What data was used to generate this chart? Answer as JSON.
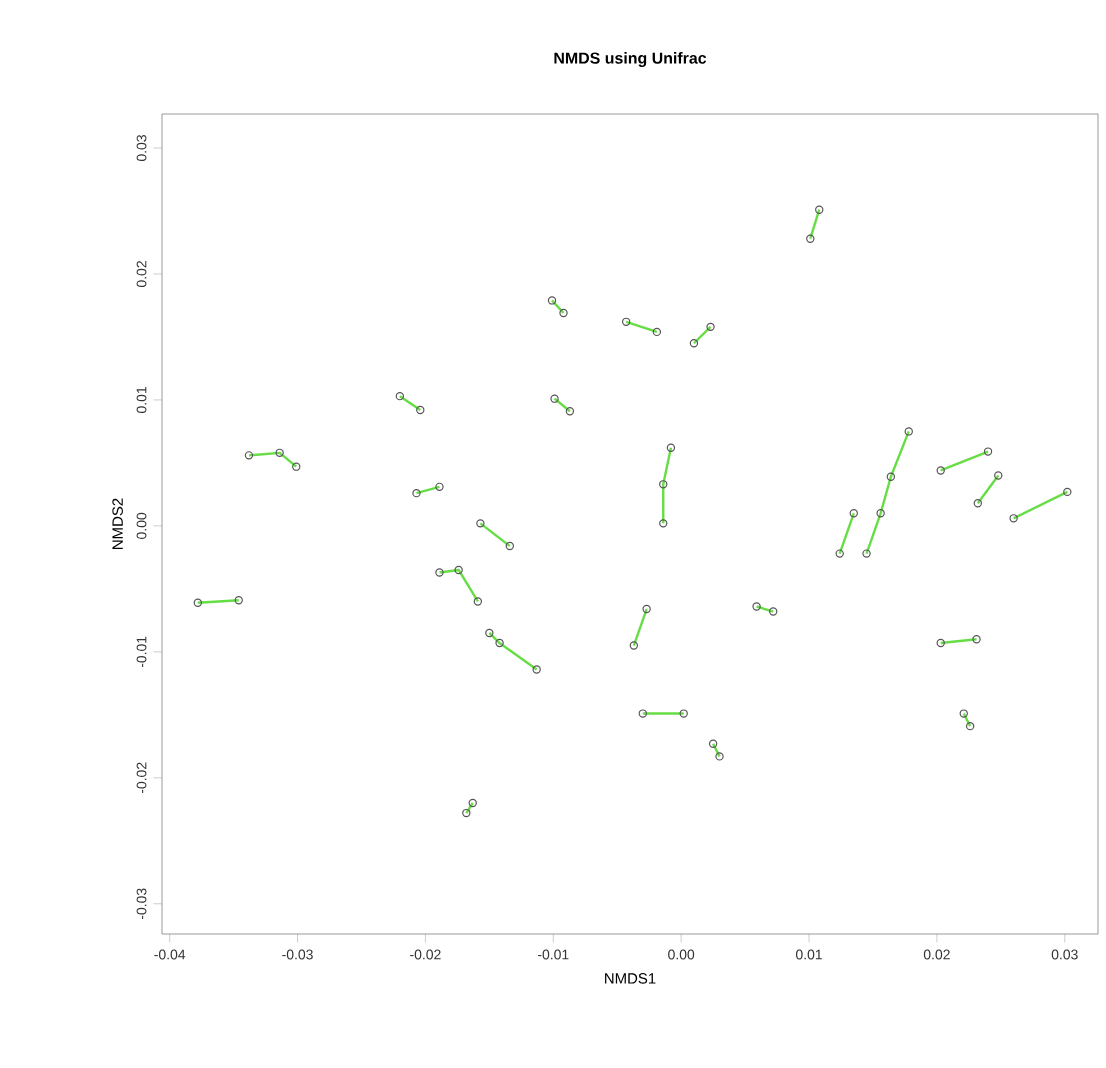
{
  "chart_data": {
    "type": "scatter",
    "title": "NMDS using Unifrac",
    "xlabel": "NMDS1",
    "ylabel": "NMDS2",
    "xlim": [
      -0.0406,
      0.0326
    ],
    "ylim": [
      -0.0324,
      0.0327
    ],
    "xticks": [
      {
        "value": -0.04,
        "label": "-0.04"
      },
      {
        "value": -0.03,
        "label": "-0.03"
      },
      {
        "value": -0.02,
        "label": "-0.02"
      },
      {
        "value": -0.01,
        "label": "-0.01"
      },
      {
        "value": 0,
        "label": "0.00"
      },
      {
        "value": 0.01,
        "label": "0.01"
      },
      {
        "value": 0.02,
        "label": "0.02"
      },
      {
        "value": 0.03,
        "label": "0.03"
      }
    ],
    "yticks": [
      {
        "value": -0.03,
        "label": "-0.03"
      },
      {
        "value": -0.02,
        "label": "-0.02"
      },
      {
        "value": -0.01,
        "label": "-0.01"
      },
      {
        "value": 0,
        "label": "0.00"
      },
      {
        "value": 0.01,
        "label": "0.01"
      },
      {
        "value": 0.02,
        "label": "0.02"
      },
      {
        "value": 0.03,
        "label": "0.03"
      }
    ],
    "grid": false,
    "series": [
      {
        "type": "line",
        "color": "#66dd44",
        "marker": "none",
        "x": [
          -0.0101,
          -0.0092
        ],
        "values": [
          0.0179,
          0.0169
        ]
      },
      {
        "type": "line",
        "color": "#66dd44",
        "marker": "none",
        "x": [
          -0.022,
          -0.0204
        ],
        "values": [
          0.0103,
          0.0092
        ]
      },
      {
        "type": "line",
        "color": "#66dd44",
        "marker": "none",
        "x": [
          -0.0099,
          -0.0087
        ],
        "values": [
          0.0101,
          0.0091
        ]
      },
      {
        "type": "line",
        "color": "#66dd44",
        "marker": "none",
        "x": [
          -0.0338,
          -0.0314,
          -0.0301
        ],
        "values": [
          0.0056,
          0.0058,
          0.0047
        ]
      },
      {
        "type": "line",
        "color": "#66dd44",
        "marker": "none",
        "x": [
          -0.0207,
          -0.0189
        ],
        "values": [
          0.0026,
          0.0031
        ]
      },
      {
        "type": "line",
        "color": "#66dd44",
        "marker": "none",
        "x": [
          -0.0157,
          -0.0134
        ],
        "values": [
          0.0002,
          -0.0016
        ]
      },
      {
        "type": "line",
        "color": "#66dd44",
        "marker": "none",
        "x": [
          0.0108,
          0.0101
        ],
        "values": [
          0.0251,
          0.0228
        ]
      },
      {
        "type": "line",
        "color": "#66dd44",
        "marker": "none",
        "x": [
          -0.0043,
          -0.0019
        ],
        "values": [
          0.0162,
          0.0154
        ]
      },
      {
        "type": "line",
        "color": "#66dd44",
        "marker": "none",
        "x": [
          0.0023,
          0.001
        ],
        "values": [
          0.0158,
          0.0145
        ]
      },
      {
        "type": "line",
        "color": "#66dd44",
        "marker": "none",
        "x": [
          -0.0008,
          -0.0014,
          -0.0014
        ],
        "values": [
          0.0062,
          0.0033,
          0.0002
        ]
      },
      {
        "type": "line",
        "color": "#66dd44",
        "marker": "none",
        "x": [
          0.0178,
          0.0164,
          0.0156,
          0.0145
        ],
        "values": [
          0.0075,
          0.0039,
          0.001,
          -0.0022
        ]
      },
      {
        "type": "line",
        "color": "#66dd44",
        "marker": "none",
        "x": [
          0.0135,
          0.0124
        ],
        "values": [
          0.001,
          -0.0022
        ]
      },
      {
        "type": "line",
        "color": "#66dd44",
        "marker": "none",
        "x": [
          0.0203,
          0.024
        ],
        "values": [
          0.0044,
          0.0059
        ]
      },
      {
        "type": "line",
        "color": "#66dd44",
        "marker": "none",
        "x": [
          0.0248,
          0.0232
        ],
        "values": [
          0.004,
          0.0018
        ]
      },
      {
        "type": "line",
        "color": "#66dd44",
        "marker": "none",
        "x": [
          0.0302,
          0.026
        ],
        "values": [
          0.0027,
          0.0006
        ]
      },
      {
        "type": "line",
        "color": "#66dd44",
        "marker": "none",
        "x": [
          -0.0378,
          -0.0346
        ],
        "values": [
          -0.0061,
          -0.0059
        ]
      },
      {
        "type": "line",
        "color": "#66dd44",
        "marker": "none",
        "x": [
          -0.0189,
          -0.0174,
          -0.0159
        ],
        "values": [
          -0.0037,
          -0.0035,
          -0.006
        ]
      },
      {
        "type": "line",
        "color": "#66dd44",
        "marker": "none",
        "x": [
          -0.015,
          -0.0142,
          -0.0113
        ],
        "values": [
          -0.0085,
          -0.0093,
          -0.0114
        ]
      },
      {
        "type": "line",
        "color": "#66dd44",
        "marker": "none",
        "x": [
          -0.0163,
          -0.0168
        ],
        "values": [
          -0.022,
          -0.0228
        ]
      },
      {
        "type": "line",
        "color": "#66dd44",
        "marker": "none",
        "x": [
          -0.0027,
          -0.0037
        ],
        "values": [
          -0.0066,
          -0.0095
        ]
      },
      {
        "type": "line",
        "color": "#66dd44",
        "marker": "none",
        "x": [
          0.0059,
          0.0072
        ],
        "values": [
          -0.0064,
          -0.0068
        ]
      },
      {
        "type": "line",
        "color": "#66dd44",
        "marker": "none",
        "x": [
          0.0203,
          0.0231
        ],
        "values": [
          -0.0093,
          -0.009
        ]
      },
      {
        "type": "line",
        "color": "#66dd44",
        "marker": "none",
        "x": [
          -0.003,
          0.0002
        ],
        "values": [
          -0.0149,
          -0.0149
        ]
      },
      {
        "type": "line",
        "color": "#66dd44",
        "marker": "none",
        "x": [
          0.0025,
          0.003
        ],
        "values": [
          -0.0173,
          -0.0183
        ]
      },
      {
        "type": "line",
        "color": "#66dd44",
        "marker": "none",
        "x": [
          0.0221,
          0.0226
        ],
        "values": [
          -0.0149,
          -0.0159
        ]
      },
      {
        "color": "#555555",
        "marker": "circle",
        "x": [
          -0.0101,
          -0.0092,
          -0.022,
          -0.0204,
          -0.0099,
          -0.0087,
          -0.0338,
          -0.0314,
          -0.0301,
          -0.0207,
          -0.0189,
          -0.0157,
          -0.0134,
          0.0108,
          0.0101,
          -0.0043,
          -0.0019,
          0.0023,
          0.001,
          -0.0008,
          -0.0014,
          -0.0014,
          0.0178,
          0.0164,
          0.0156,
          0.0145,
          0.0135,
          0.0124,
          0.0203,
          0.024,
          0.0248,
          0.0232,
          0.0302,
          0.026,
          -0.0378,
          -0.0346,
          -0.0189,
          -0.0174,
          -0.0159,
          -0.015,
          -0.0142,
          -0.0113,
          -0.0163,
          -0.0168,
          -0.0027,
          -0.0037,
          0.0059,
          0.0072,
          0.0203,
          0.0231,
          -0.003,
          0.0002,
          0.0025,
          0.003,
          0.0221,
          0.0226
        ],
        "values": [
          0.0179,
          0.0169,
          0.0103,
          0.0092,
          0.0101,
          0.0091,
          0.0056,
          0.0058,
          0.0047,
          0.0026,
          0.0031,
          0.0002,
          -0.0016,
          0.0251,
          0.0228,
          0.0162,
          0.0154,
          0.0158,
          0.0145,
          0.0062,
          0.0033,
          0.0002,
          0.0075,
          0.0039,
          0.001,
          -0.0022,
          0.001,
          -0.0022,
          0.0044,
          0.0059,
          0.004,
          0.0018,
          0.0027,
          0.0006,
          -0.0061,
          -0.0059,
          -0.0037,
          -0.0035,
          -0.006,
          -0.0085,
          -0.0093,
          -0.0114,
          -0.022,
          -0.0228,
          -0.0066,
          -0.0095,
          -0.0064,
          -0.0068,
          -0.0093,
          -0.009,
          -0.0149,
          -0.0149,
          -0.0173,
          -0.0183,
          -0.0149,
          -0.0159
        ]
      }
    ]
  }
}
